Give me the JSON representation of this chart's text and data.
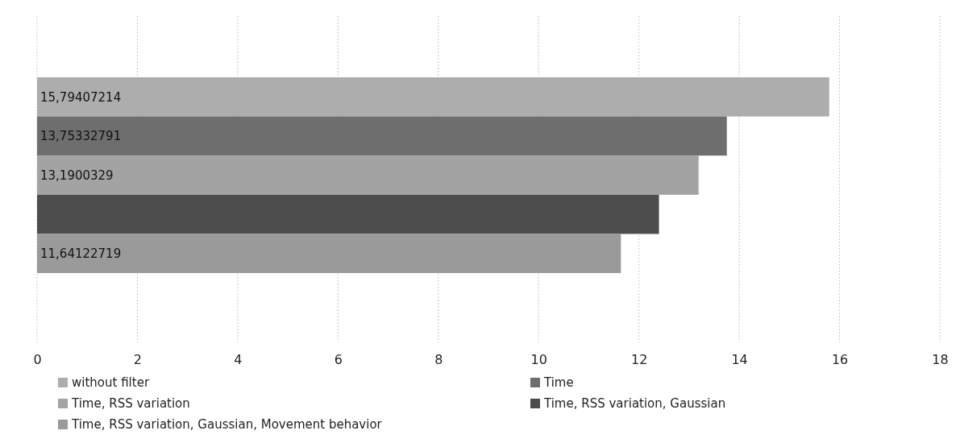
{
  "chart_data": {
    "type": "bar",
    "orientation": "horizontal",
    "categories": [
      null
    ],
    "series": [
      {
        "name": "without filter",
        "color": "#adadad",
        "values": [
          15.79407214
        ],
        "value_labels": [
          "15,79407214"
        ]
      },
      {
        "name": "Time",
        "color": "#6e6e6e",
        "values": [
          13.75332791
        ],
        "value_labels": [
          "13,75332791"
        ]
      },
      {
        "name": "Time, RSS variation",
        "color": "#a3a3a3",
        "values": [
          13.1900329
        ],
        "value_labels": [
          "13,1900329"
        ]
      },
      {
        "name": "Time, RSS variation, Gaussian",
        "color": "#4d4d4d",
        "values": [
          12.4
        ],
        "value_labels": [
          null
        ]
      },
      {
        "name": "Time, RSS variation, Gaussian, Movement behavior",
        "color": "#9a9a9a",
        "values": [
          11.64122719
        ],
        "value_labels": [
          "11,64122719"
        ]
      }
    ],
    "xlim": [
      0,
      18
    ],
    "xticks": [
      0,
      2,
      4,
      6,
      8,
      10,
      12,
      14,
      16,
      18
    ],
    "grid": "x",
    "legend": "bottom"
  }
}
